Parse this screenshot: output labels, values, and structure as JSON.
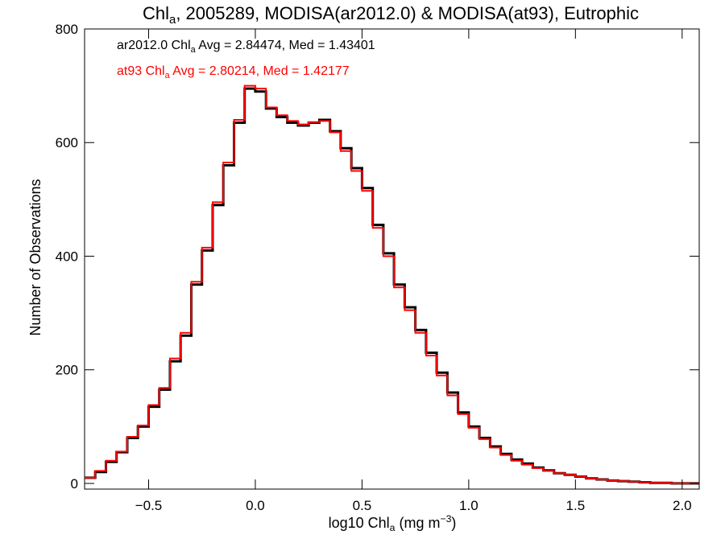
{
  "chart_data": {
    "type": "line",
    "title": {
      "prefix": "Chl",
      "sub": "a",
      "rest": ", 2005289, MODISA(ar2012.0) & MODISA(at93), Eutrophic"
    },
    "xlabel": {
      "prefix": "log10 Chl",
      "sub": "a",
      "unit_pre": " (mg m",
      "sup": "−3",
      "unit_post": ")"
    },
    "ylabel": "Number of Observations",
    "xlim": [
      -0.8,
      2.08
    ],
    "ylim": [
      -10,
      800
    ],
    "x_ticks": [
      {
        "v": -0.5,
        "label": "−0.5"
      },
      {
        "v": 0.0,
        "label": "0.0"
      },
      {
        "v": 0.5,
        "label": "0.5"
      },
      {
        "v": 1.0,
        "label": "1.0"
      },
      {
        "v": 1.5,
        "label": "1.5"
      },
      {
        "v": 2.0,
        "label": "2.0"
      }
    ],
    "y_ticks": [
      {
        "v": 0,
        "label": "0"
      },
      {
        "v": 200,
        "label": "200"
      },
      {
        "v": 400,
        "label": "400"
      },
      {
        "v": 600,
        "label": "600"
      },
      {
        "v": 800,
        "label": "800"
      }
    ],
    "legend": [
      {
        "series": "ar2012.0",
        "color": "#000000",
        "text": {
          "prefix": "ar2012.0 Chl",
          "sub": "a",
          "rest": " Avg = 2.84474, Med = 1.43401"
        }
      },
      {
        "series": "at93",
        "color": "#ff0000",
        "text": {
          "prefix": "at93 Chl",
          "sub": "a",
          "rest": " Avg = 2.80214, Med = 1.42177"
        }
      }
    ],
    "legend_placement": "top-left",
    "x": [
      -0.8,
      -0.75,
      -0.7,
      -0.65,
      -0.6,
      -0.55,
      -0.5,
      -0.45,
      -0.4,
      -0.35,
      -0.3,
      -0.25,
      -0.2,
      -0.15,
      -0.1,
      -0.05,
      0.0,
      0.05,
      0.1,
      0.15,
      0.2,
      0.25,
      0.3,
      0.35,
      0.4,
      0.45,
      0.5,
      0.55,
      0.6,
      0.65,
      0.7,
      0.75,
      0.8,
      0.85,
      0.9,
      0.95,
      1.0,
      1.05,
      1.1,
      1.15,
      1.2,
      1.25,
      1.3,
      1.35,
      1.4,
      1.45,
      1.5,
      1.55,
      1.6,
      1.65,
      1.7,
      1.75,
      1.8,
      1.85,
      1.9,
      1.95,
      2.0,
      2.05
    ],
    "series": [
      {
        "name": "ar2012.0",
        "color": "#000000",
        "stroke_width": 3,
        "values": [
          10,
          20,
          38,
          55,
          80,
          100,
          135,
          165,
          215,
          260,
          350,
          410,
          490,
          560,
          635,
          695,
          690,
          660,
          645,
          635,
          630,
          635,
          640,
          620,
          590,
          555,
          520,
          455,
          405,
          350,
          310,
          270,
          230,
          195,
          160,
          125,
          100,
          80,
          65,
          52,
          42,
          35,
          28,
          23,
          18,
          15,
          12,
          9,
          7,
          5,
          4,
          3,
          2,
          1,
          1,
          0,
          0,
          0
        ]
      },
      {
        "name": "at93",
        "color": "#ff0000",
        "stroke_width": 2,
        "values": [
          10,
          22,
          40,
          56,
          82,
          102,
          138,
          168,
          220,
          265,
          355,
          415,
          495,
          565,
          640,
          700,
          695,
          662,
          648,
          638,
          632,
          636,
          638,
          618,
          585,
          550,
          515,
          450,
          400,
          345,
          305,
          265,
          225,
          190,
          155,
          122,
          98,
          78,
          63,
          50,
          40,
          33,
          27,
          22,
          18,
          15,
          12,
          9,
          7,
          5,
          4,
          3,
          2,
          1,
          1,
          0,
          0,
          0
        ]
      }
    ]
  }
}
